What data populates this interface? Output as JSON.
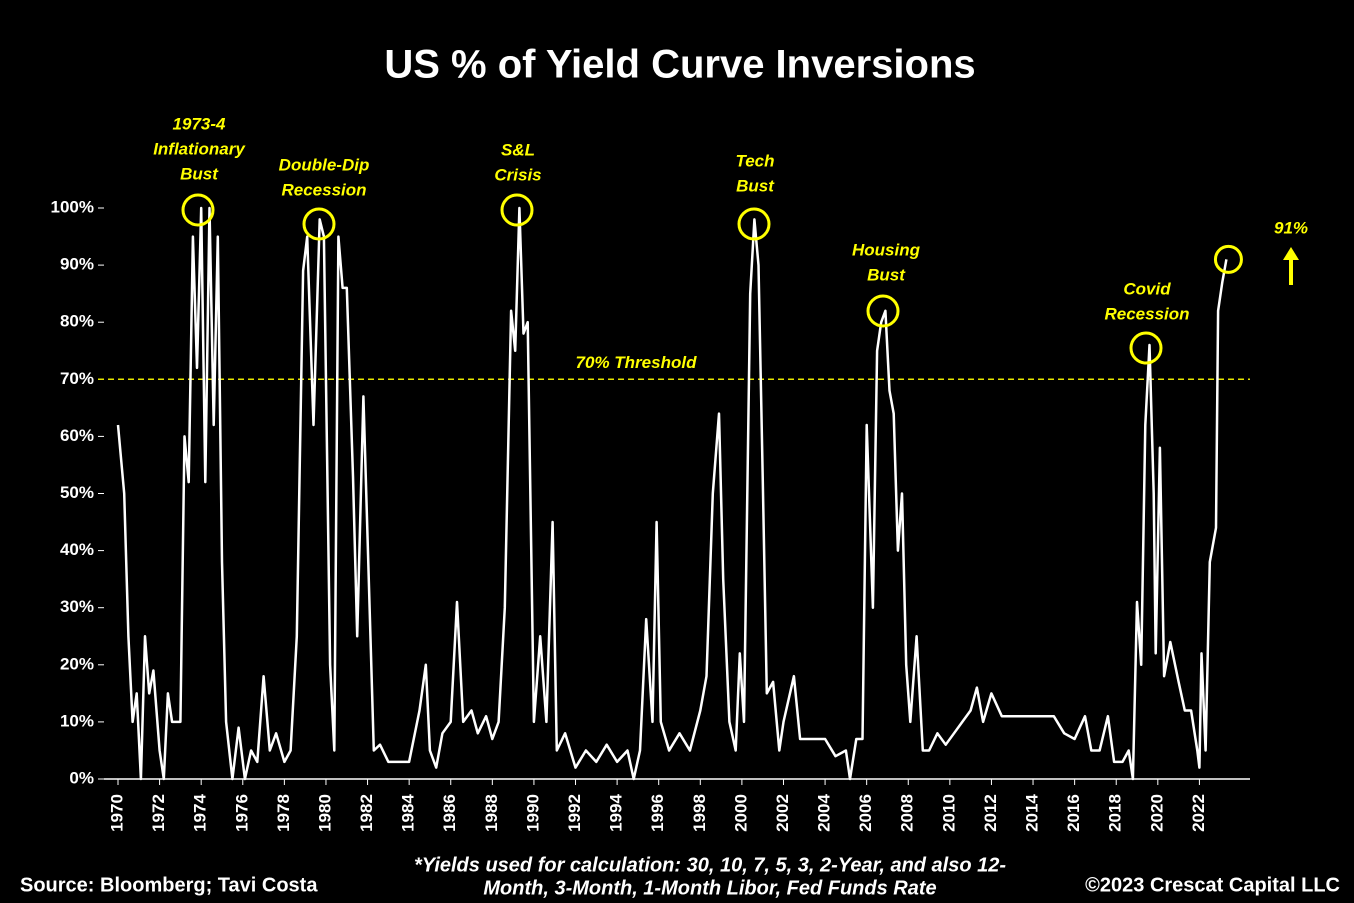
{
  "chart_data": {
    "type": "line",
    "title": "US % of Yield Curve Inversions",
    "source": "Source: Bloomberg; Tavi Costa",
    "copyright": "©2023 Crescat Capital LLC",
    "footnote": [
      "*Yields used for calculation: 30, 10, 7, 5, 3, 2-Year, and also 12-",
      "Month, 3-Month, 1-Month Libor, Fed Funds Rate"
    ],
    "xlim": [
      1970,
      2024
    ],
    "xticks": [
      1970,
      1972,
      1974,
      1976,
      1978,
      1980,
      1982,
      1984,
      1986,
      1988,
      1990,
      1992,
      1994,
      1996,
      1998,
      2000,
      2002,
      2004,
      2006,
      2008,
      2010,
      2012,
      2014,
      2016,
      2018,
      2020,
      2022
    ],
    "ylim": [
      0,
      100
    ],
    "yticks": [
      {
        "value": 0,
        "label": "0%"
      },
      {
        "value": 10,
        "label": "10%"
      },
      {
        "value": 20,
        "label": "20%"
      },
      {
        "value": 30,
        "label": "30%"
      },
      {
        "value": 40,
        "label": "40%"
      },
      {
        "value": 50,
        "label": "50%"
      },
      {
        "value": 60,
        "label": "60%"
      },
      {
        "value": 70,
        "label": "70%"
      },
      {
        "value": 80,
        "label": "80%"
      },
      {
        "value": 90,
        "label": "90%"
      },
      {
        "value": 100,
        "label": "100%"
      }
    ],
    "threshold": {
      "value": 70,
      "label": "70% Threshold",
      "color": "#e6e600"
    },
    "callout": {
      "value": 91,
      "label": "91%"
    },
    "annotations": [
      {
        "text": [
          "1973-4",
          "Inflationary",
          "Bust"
        ]
      },
      {
        "text": [
          "Double-Dip",
          "Recession"
        ]
      },
      {
        "text": [
          "S&L",
          "Crisis"
        ]
      },
      {
        "text": [
          "Tech",
          "Bust"
        ]
      },
      {
        "text": [
          "Housing",
          "Bust"
        ]
      },
      {
        "text": [
          "Covid",
          "Recession"
        ]
      }
    ],
    "color": "#ffffff",
    "x": [
      1970,
      1970.3,
      1970.5,
      1970.7,
      1970.9,
      1971.1,
      1971.3,
      1971.5,
      1971.7,
      1972,
      1972.2,
      1972.4,
      1972.6,
      1973,
      1973.2,
      1973.4,
      1973.6,
      1973.8,
      1974,
      1974.2,
      1974.4,
      1974.6,
      1974.8,
      1975,
      1975.2,
      1975.5,
      1975.8,
      1976.1,
      1976.4,
      1976.7,
      1977,
      1977.3,
      1977.6,
      1978,
      1978.3,
      1978.6,
      1978.9,
      1979.1,
      1979.4,
      1979.7,
      1979.9,
      1980.2,
      1980.4,
      1980.6,
      1980.8,
      1981,
      1981.3,
      1981.5,
      1981.8,
      1982,
      1982.3,
      1982.6,
      1983,
      1983.5,
      1984,
      1984.5,
      1984.8,
      1985,
      1985.3,
      1985.6,
      1986,
      1986.3,
      1986.6,
      1987,
      1987.3,
      1987.7,
      1988,
      1988.3,
      1988.6,
      1988.9,
      1989.1,
      1989.3,
      1989.5,
      1989.7,
      1990,
      1990.3,
      1990.6,
      1990.9,
      1991.1,
      1991.5,
      1992,
      1992.5,
      1993,
      1993.5,
      1994,
      1994.5,
      1994.8,
      1995.1,
      1995.4,
      1995.7,
      1995.9,
      1996.1,
      1996.5,
      1997,
      1997.5,
      1998,
      1998.3,
      1998.6,
      1998.9,
      1999.1,
      1999.4,
      1999.7,
      1999.9,
      2000.1,
      2000.4,
      2000.6,
      2000.8,
      2001,
      2001.2,
      2001.5,
      2001.8,
      2002,
      2002.5,
      2002.8,
      2003.5,
      2004,
      2004.5,
      2005,
      2005.2,
      2005.5,
      2005.8,
      2006,
      2006.3,
      2006.5,
      2006.7,
      2006.9,
      2007.1,
      2007.3,
      2007.5,
      2007.7,
      2007.9,
      2008.1,
      2008.4,
      2008.7,
      2009,
      2009.4,
      2009.8,
      2010.2,
      2010.6,
      2011,
      2011.3,
      2011.6,
      2012,
      2012.5,
      2013,
      2014,
      2015,
      2015.5,
      2016,
      2016.5,
      2016.8,
      2017.2,
      2017.6,
      2017.9,
      2018.3,
      2018.6,
      2018.8,
      2019,
      2019.2,
      2019.4,
      2019.6,
      2019.8,
      2019.9,
      2020.1,
      2020.3,
      2020.6,
      2021,
      2021.3,
      2021.6,
      2021.9,
      2022,
      2022.1,
      2022.3,
      2022.5,
      2022.8,
      2022.9,
      2023.1,
      2023.3
    ],
    "values": [
      62,
      50,
      25,
      10,
      15,
      0,
      25,
      15,
      19,
      5,
      0,
      15,
      10,
      10,
      60,
      52,
      95,
      72,
      100,
      52,
      100,
      62,
      95,
      38,
      10,
      0,
      9,
      0,
      5,
      3,
      18,
      5,
      8,
      3,
      5,
      25,
      89,
      95,
      62,
      98,
      95,
      20,
      5,
      95,
      86,
      86,
      53,
      25,
      67,
      42,
      5,
      6,
      3,
      3,
      3,
      12,
      20,
      5,
      2,
      8,
      10,
      31,
      10,
      12,
      8,
      11,
      7,
      10,
      30,
      82,
      75,
      100,
      78,
      80,
      10,
      25,
      10,
      45,
      5,
      8,
      2,
      5,
      3,
      6,
      3,
      5,
      0,
      5,
      28,
      10,
      45,
      10,
      5,
      8,
      5,
      12,
      18,
      50,
      64,
      35,
      10,
      5,
      22,
      10,
      85,
      98,
      90,
      53,
      15,
      17,
      5,
      10,
      18,
      7,
      7,
      7,
      4,
      5,
      0,
      7,
      7,
      62,
      30,
      75,
      80,
      82,
      68,
      64,
      40,
      50,
      20,
      10,
      25,
      5,
      5,
      8,
      6,
      8,
      10,
      12,
      16,
      10,
      15,
      11,
      11,
      11,
      11,
      8,
      7,
      11,
      5,
      5,
      11,
      3,
      3,
      5,
      0,
      31,
      20,
      62,
      76,
      50,
      22,
      58,
      18,
      24,
      17,
      12,
      12,
      5,
      2,
      22,
      5,
      38,
      44,
      82,
      87,
      91
    ]
  }
}
